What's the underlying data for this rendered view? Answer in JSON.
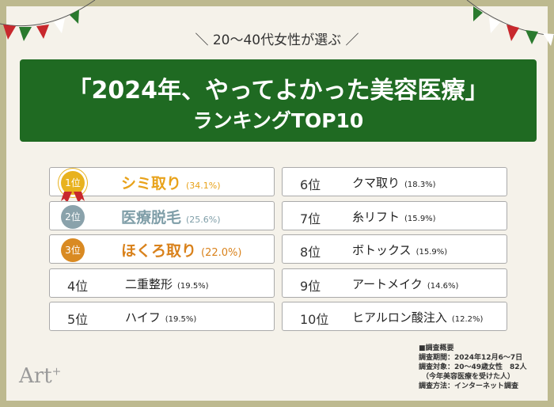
{
  "header": {
    "subtitle": "＼ 20〜40代女性が選ぶ ／",
    "title_line1": "「2024年、やってよかった美容医療」",
    "title_line2": "ランキングTOP10"
  },
  "ranking": [
    {
      "rank": "1位",
      "name": "シミ取り",
      "percent": "(34.1%)"
    },
    {
      "rank": "2位",
      "name": "医療脱毛",
      "percent": "(25.6%)"
    },
    {
      "rank": "3位",
      "name": "ほくろ取り",
      "percent": "(22.0%)"
    },
    {
      "rank": "4位",
      "name": "二重整形",
      "percent": "(19.5%)"
    },
    {
      "rank": "5位",
      "name": "ハイフ",
      "percent": "(19.5%)"
    },
    {
      "rank": "6位",
      "name": "クマ取り",
      "percent": "(18.3%)"
    },
    {
      "rank": "7位",
      "name": "糸リフト",
      "percent": "(15.9%)"
    },
    {
      "rank": "8位",
      "name": "ボトックス",
      "percent": "(15.9%)"
    },
    {
      "rank": "9位",
      "name": "アートメイク",
      "percent": "(14.6%)"
    },
    {
      "rank": "10位",
      "name": "ヒアルロン酸注入",
      "percent": "(12.2%)"
    }
  ],
  "survey": {
    "heading": "■調査概要",
    "lines": [
      "調査期間：2024年12月6〜7日",
      "調査対象：20〜49歳女性　82人",
      "（今年美容医療を受けた人）",
      "調査方法：インターネット調査"
    ]
  },
  "logo": {
    "text": "Art",
    "sup": "+"
  }
}
